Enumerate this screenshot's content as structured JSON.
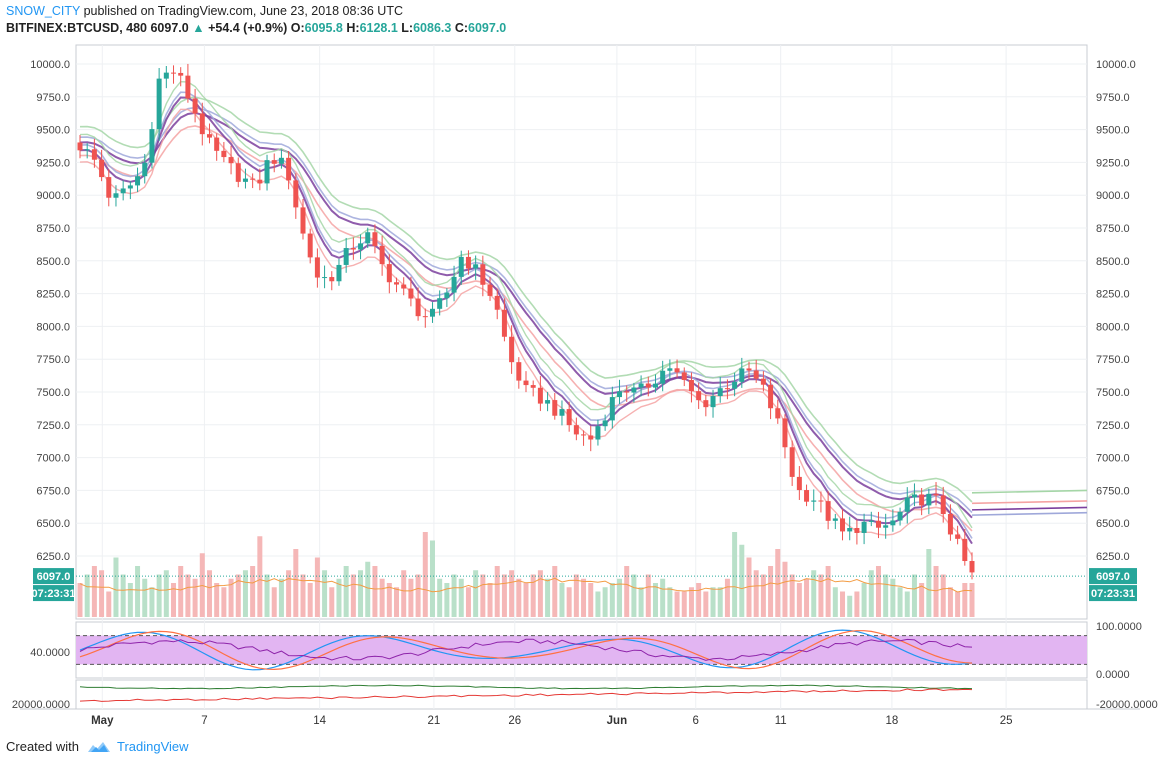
{
  "header": {
    "author": "SNOW_CITY",
    "published": "published on TradingView.com, June 23, 2018 08:36 UTC",
    "symbol": "BITFINEX:BTCUSD, 480",
    "last": "6097.0",
    "change": "+54.4 (+0.9%)",
    "o_label": "O:",
    "o": "6095.8",
    "h_label": "H:",
    "h": "6128.1",
    "l_label": "L:",
    "l": "6086.3",
    "c_label": "C:",
    "c": "6097.0"
  },
  "footer": {
    "created_with": "Created with",
    "brand": "TradingView"
  },
  "colors": {
    "up": "#26a69a",
    "down": "#ef5350",
    "upVol": "#b9e0c9",
    "downVol": "#f5b7b7",
    "green": "#a5d6a7",
    "red": "#f4a3a3",
    "purple": "#7b3f9e",
    "lavender": "#9fa8da",
    "grid": "#eef0f3"
  },
  "chart_data": [
    {
      "type": "candlestick",
      "title": "BITFINEX:BTCUSD, 480",
      "ylim": [
        5900,
        10100
      ],
      "y_ticks": [
        "10000.0",
        "9750.0",
        "9500.0",
        "9250.0",
        "9000.0",
        "8750.0",
        "8500.0",
        "8250.0",
        "8000.0",
        "7750.0",
        "7500.0",
        "7250.0",
        "7000.0",
        "6750.0",
        "6500.0",
        "6250.0"
      ],
      "x_labels": [
        "May",
        "7",
        "14",
        "21",
        "26",
        "Jun",
        "6",
        "11",
        "18",
        "25"
      ],
      "price_label": "6097.0",
      "countdown_label": "07:23:31",
      "close_path": [
        [
          0,
          9380
        ],
        [
          3,
          9250
        ],
        [
          6,
          8950
        ],
        [
          9,
          9050
        ],
        [
          12,
          9200
        ],
        [
          15,
          9900
        ],
        [
          18,
          9950
        ],
        [
          21,
          9700
        ],
        [
          24,
          9400
        ],
        [
          27,
          9250
        ],
        [
          30,
          9150
        ],
        [
          33,
          9050
        ],
        [
          36,
          9300
        ],
        [
          39,
          9200
        ],
        [
          42,
          8700
        ],
        [
          45,
          8350
        ],
        [
          48,
          8400
        ],
        [
          51,
          8600
        ],
        [
          54,
          8700
        ],
        [
          57,
          8450
        ],
        [
          60,
          8300
        ],
        [
          63,
          8150
        ],
        [
          66,
          8050
        ],
        [
          69,
          8250
        ],
        [
          72,
          8550
        ],
        [
          75,
          8400
        ],
        [
          78,
          8200
        ],
        [
          81,
          7750
        ],
        [
          84,
          7500
        ],
        [
          87,
          7450
        ],
        [
          90,
          7350
        ],
        [
          93,
          7200
        ],
        [
          96,
          7130
        ],
        [
          99,
          7350
        ],
        [
          102,
          7550
        ],
        [
          105,
          7480
        ],
        [
          108,
          7600
        ],
        [
          111,
          7700
        ],
        [
          114,
          7550
        ],
        [
          117,
          7400
        ],
        [
          120,
          7500
        ],
        [
          123,
          7600
        ],
        [
          126,
          7650
        ],
        [
          129,
          7500
        ],
        [
          132,
          7200
        ],
        [
          135,
          6750
        ],
        [
          138,
          6700
        ],
        [
          141,
          6550
        ],
        [
          144,
          6400
        ],
        [
          147,
          6500
        ],
        [
          150,
          6450
        ],
        [
          153,
          6500
        ],
        [
          156,
          6650
        ],
        [
          159,
          6700
        ],
        [
          162,
          6650
        ],
        [
          165,
          6350
        ],
        [
          166,
          6250
        ],
        [
          168,
          6097
        ]
      ],
      "volume_heights": [
        0.4,
        0.5,
        0.6,
        0.55,
        0.3,
        0.7,
        0.5,
        0.4,
        0.6,
        0.45,
        0.35,
        0.5,
        0.55,
        0.4,
        0.6,
        0.5,
        0.45,
        0.75,
        0.55,
        0.4,
        0.35,
        0.45,
        0.5,
        0.55,
        0.6,
        0.95,
        0.5,
        0.35,
        0.45,
        0.55,
        0.8,
        0.5,
        0.4,
        0.7,
        0.55,
        0.35,
        0.45,
        0.6,
        0.5,
        0.55,
        0.65,
        0.6,
        0.45,
        0.4,
        0.35,
        0.55,
        0.45,
        0.5,
        1.0,
        0.9,
        0.45,
        0.4,
        0.5,
        0.45,
        0.35,
        0.55,
        0.5,
        0.4,
        0.6,
        0.5,
        0.55,
        0.45,
        0.4,
        0.5,
        0.55,
        0.45,
        0.6,
        0.4,
        0.35,
        0.5,
        0.45,
        0.4,
        0.3,
        0.35,
        0.4,
        0.45,
        0.6,
        0.5,
        0.35,
        0.5,
        0.4,
        0.45,
        0.35,
        0.3,
        0.3,
        0.35,
        0.4,
        0.3,
        0.35,
        0.35,
        0.45,
        1.0,
        0.85,
        0.7,
        0.55,
        0.5,
        0.6,
        0.8,
        0.65,
        0.5,
        0.4,
        0.45,
        0.55,
        0.5,
        0.6,
        0.35,
        0.3,
        0.25,
        0.3,
        0.4,
        0.55,
        0.6,
        0.5,
        0.45,
        0.35,
        0.3,
        0.5,
        0.4,
        0.8,
        0.6,
        0.5,
        0.35,
        0.3
      ]
    },
    {
      "type": "line",
      "name": "oscillator",
      "ylim": [
        0,
        100
      ],
      "y_ticks": [
        "100.0000",
        "0.0000"
      ],
      "left_label": "40.0000",
      "band": [
        20,
        80
      ]
    },
    {
      "type": "line",
      "name": "lower-indicator",
      "y_ticks": [
        "20000.0000",
        "-20000.0000"
      ],
      "left_label": "20000.0000"
    }
  ]
}
